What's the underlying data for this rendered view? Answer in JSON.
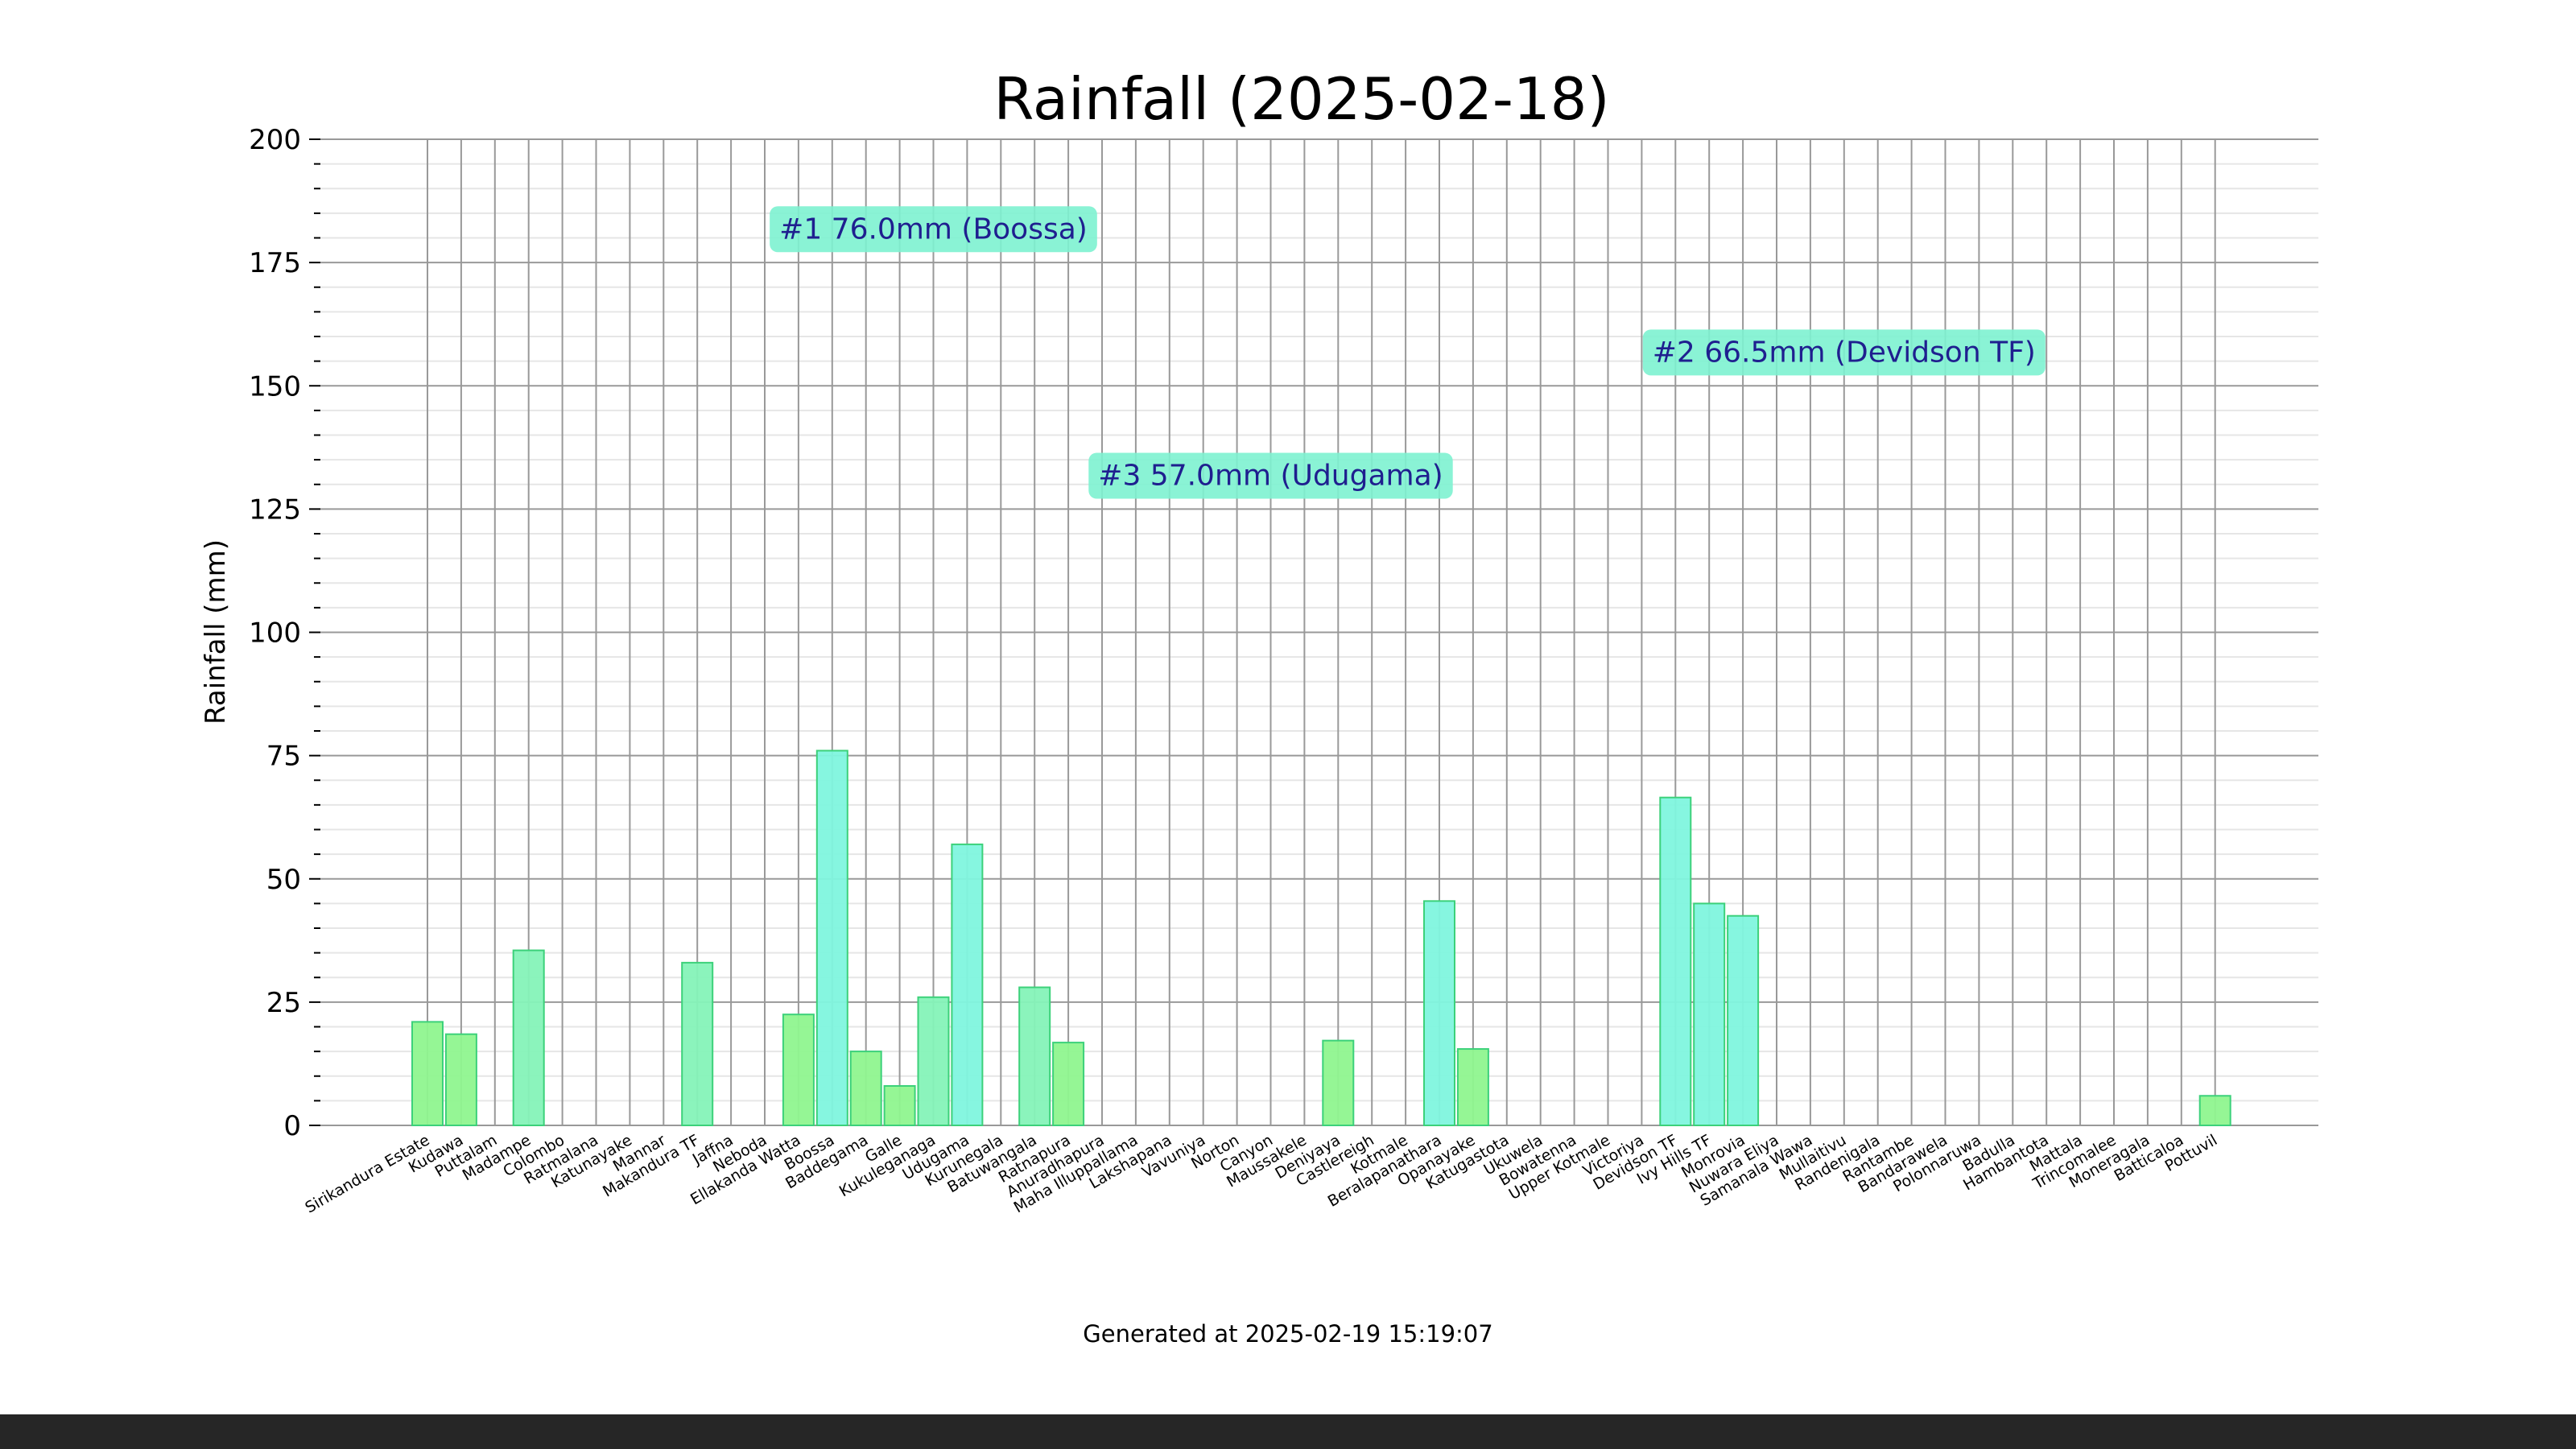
{
  "chart_data": {
    "type": "bar",
    "title": "Rainfall (2025-02-18)",
    "ylabel": "Rainfall (mm)",
    "xlabel": "",
    "ylim": [
      0,
      200
    ],
    "yticks": [
      0,
      25,
      50,
      75,
      100,
      125,
      150,
      175,
      200
    ],
    "grid": true,
    "categories": [
      "Sirikandura Estate",
      "Kudawa",
      "Puttalam",
      "Madampe",
      "Colombo",
      "Ratmalana",
      "Katunayake",
      "Mannar",
      "Makandura TF",
      "Jaffna",
      "Neboda",
      "Ellakanda Watta",
      "Boossa",
      "Baddegama",
      "Galle",
      "Kukuleganaga",
      "Udugama",
      "Kurunegala",
      "Batuwangala",
      "Ratnapura",
      "Anuradhapura",
      "Maha Illuppallama",
      "Lakshapana",
      "Vavuniya",
      "Norton",
      "Canyon",
      "Maussakele",
      "Deniyaya",
      "Castlereigh",
      "Kotmale",
      "Beralapanathara",
      "Opanayake",
      "Katugastota",
      "Ukuwela",
      "Bowatenna",
      "Upper Kotmale",
      "Victoriya",
      "Devidson TF",
      "Ivy Hills TF",
      "Monrovia",
      "Nuwara Eliya",
      "Samanala Wawa",
      "Mullaitivu",
      "Randenigala",
      "Rantambe",
      "Bandarawela",
      "Polonnaruwa",
      "Badulla",
      "Hambantota",
      "Mattala",
      "Trincomalee",
      "Moneragala",
      "Batticaloa",
      "Pottuvil"
    ],
    "values": [
      21.0,
      18.5,
      0,
      35.5,
      0,
      0,
      0,
      0,
      33.0,
      0,
      0,
      22.5,
      76.0,
      15.0,
      8.0,
      26.0,
      57.0,
      0,
      28.0,
      16.8,
      0,
      0,
      0,
      0,
      0,
      0,
      0,
      17.2,
      0,
      0,
      45.5,
      15.5,
      0,
      0,
      0,
      0,
      0,
      66.5,
      45.0,
      42.5,
      0,
      0,
      0,
      0,
      0,
      0,
      0,
      0,
      0,
      0,
      0,
      0,
      0,
      6.0
    ],
    "annotations": [
      {
        "text": "#1 76.0mm (Boossa)",
        "x": "Kukuleganaga",
        "y": 182
      },
      {
        "text": "#2 66.5mm (Devidson TF)",
        "x": "Mullaitivu",
        "y": 157
      },
      {
        "text": "#3 57.0mm (Udugama)",
        "x": "Canyon",
        "y": 132
      }
    ],
    "footer": "Generated at 2025-02-19 15:19:07",
    "colors": {
      "bar_low": "#8ff58f",
      "bar_high": "#7ff5de",
      "bar_stroke": "#3cd17a",
      "annotation_bg": "#7df2d0",
      "annotation_text": "#1f1f8f",
      "grid_major": "#999999",
      "grid_minor": "#e6e6e6"
    }
  }
}
